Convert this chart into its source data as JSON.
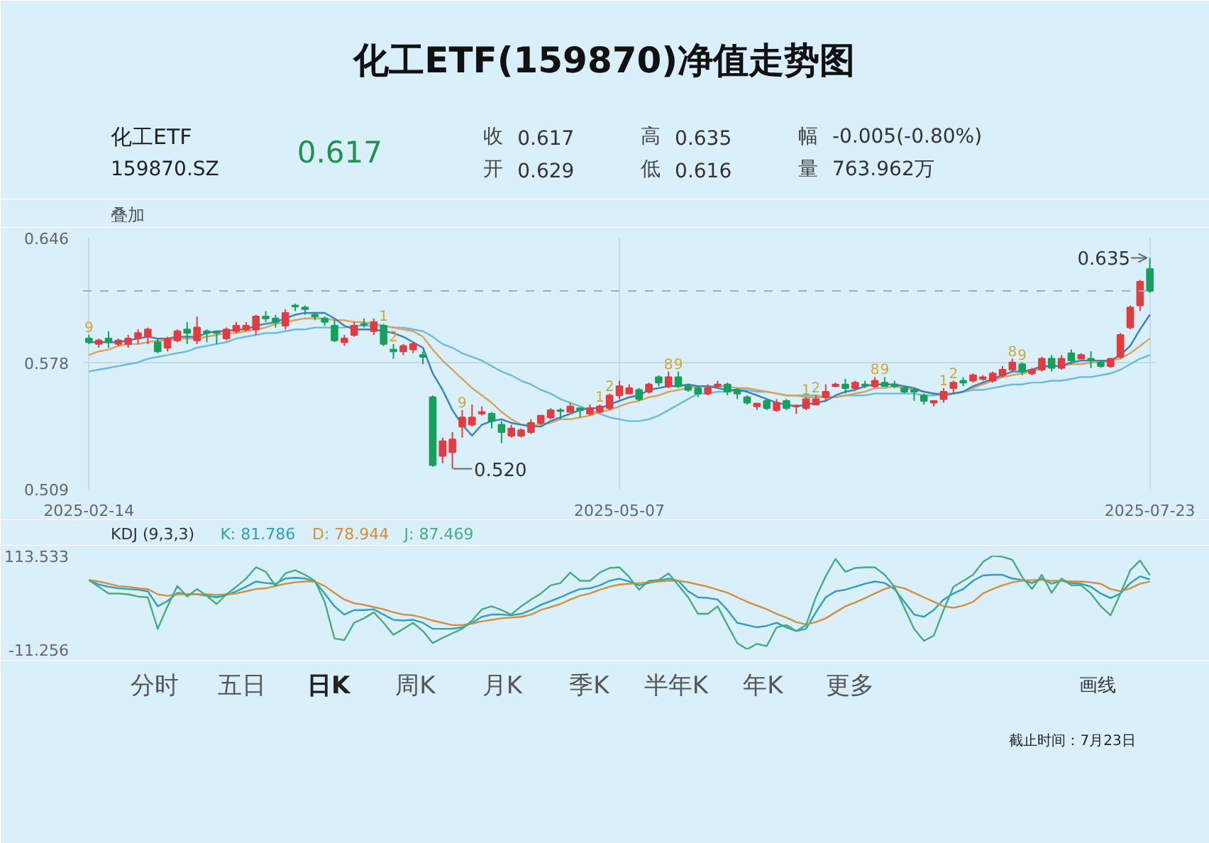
{
  "chart_data": [
    {
      "type": "other",
      "title": "化工ETF(159870)净值走势图",
      "annotations": [
        "化工ETF",
        "159870.SZ",
        "0.617",
        "收",
        "0.617",
        "开",
        "0.629",
        "高",
        "0.635",
        "低",
        "0.616",
        "幅",
        "-0.005(-0.80%)",
        "量",
        "763.962万"
      ]
    },
    {
      "type": "candlestick",
      "categories": [
        "2025-02-14",
        null,
        null,
        null,
        null,
        null,
        null,
        null,
        null,
        null,
        null,
        null,
        null,
        null,
        null,
        null,
        null,
        null,
        null,
        null,
        null,
        null,
        null,
        null,
        null,
        null,
        null,
        null,
        null,
        null,
        null,
        null,
        null,
        null,
        null,
        null,
        null,
        null,
        null,
        null,
        null,
        null,
        null,
        null,
        null,
        null,
        null,
        null,
        null,
        null,
        null,
        null,
        null,
        null,
        "2025-05-07",
        null,
        null,
        null,
        null,
        null,
        null,
        null,
        null,
        null,
        null,
        null,
        null,
        null,
        null,
        null,
        null,
        null,
        null,
        null,
        null,
        null,
        null,
        null,
        null,
        null,
        null,
        null,
        null,
        null,
        null,
        null,
        null,
        null,
        null,
        null,
        null,
        null,
        null,
        null,
        null,
        null,
        null,
        null,
        null,
        null,
        null,
        null,
        null,
        null,
        null,
        null,
        null,
        null,
        "2025-07-23"
      ],
      "ohlc": [
        [
          0.591,
          0.593,
          0.588,
          0.589
        ],
        [
          0.588,
          0.591,
          0.586,
          0.59
        ],
        [
          0.591,
          0.595,
          0.586,
          0.589
        ],
        [
          0.588,
          0.591,
          0.587,
          0.59
        ],
        [
          0.588,
          0.593,
          0.586,
          0.591
        ],
        [
          0.591,
          0.596,
          0.588,
          0.594
        ],
        [
          0.592,
          0.597,
          0.588,
          0.596
        ],
        [
          0.589,
          0.591,
          0.583,
          0.584
        ],
        [
          0.586,
          0.592,
          0.584,
          0.591
        ],
        [
          0.59,
          0.596,
          0.589,
          0.595
        ],
        [
          0.596,
          0.6,
          0.588,
          0.594
        ],
        [
          0.59,
          0.603,
          0.588,
          0.597
        ],
        [
          0.595,
          0.596,
          0.589,
          0.594
        ],
        [
          0.5945,
          0.595,
          0.588,
          0.594
        ],
        [
          0.591,
          0.597,
          0.59,
          0.596
        ],
        [
          0.595,
          0.6,
          0.594,
          0.598
        ],
        [
          0.596,
          0.6,
          0.595,
          0.598
        ],
        [
          0.596,
          0.604,
          0.593,
          0.603
        ],
        [
          0.603,
          0.606,
          0.6,
          0.602
        ],
        [
          0.602,
          0.604,
          0.597,
          0.6
        ],
        [
          0.598,
          0.607,
          0.596,
          0.605
        ],
        [
          0.609,
          0.61,
          0.606,
          0.6085
        ],
        [
          0.608,
          0.609,
          0.604,
          0.607
        ],
        [
          0.604,
          0.6055,
          0.601,
          0.603
        ],
        [
          0.602,
          0.603,
          0.598,
          0.6
        ],
        [
          0.598,
          0.601,
          0.589,
          0.59
        ],
        [
          0.589,
          0.593,
          0.587,
          0.591
        ],
        [
          0.593,
          0.6,
          0.592,
          0.598
        ],
        [
          0.599,
          0.602,
          0.597,
          0.5985
        ],
        [
          0.595,
          0.602,
          0.593,
          0.6
        ],
        [
          0.598,
          0.599,
          0.587,
          0.588
        ],
        [
          0.585,
          0.588,
          0.58,
          0.584
        ],
        [
          0.584,
          0.588,
          0.582,
          0.587
        ],
        [
          0.585,
          0.589,
          0.583,
          0.588
        ],
        [
          0.582,
          0.584,
          0.577,
          0.581
        ],
        [
          0.559,
          0.56,
          0.521,
          0.522
        ],
        [
          0.527,
          0.537,
          0.523,
          0.535
        ],
        [
          0.529,
          0.54,
          0.52,
          0.536
        ],
        [
          0.543,
          0.552,
          0.537,
          0.548
        ],
        [
          0.544,
          0.555,
          0.543,
          0.548
        ],
        [
          0.55,
          0.554,
          0.549,
          0.551
        ],
        [
          0.55,
          0.551,
          0.542,
          0.546
        ],
        [
          0.544,
          0.546,
          0.534,
          0.54
        ],
        [
          0.538,
          0.544,
          0.537,
          0.542
        ],
        [
          0.538,
          0.542,
          0.537,
          0.541
        ],
        [
          0.54,
          0.547,
          0.539,
          0.545
        ],
        [
          0.545,
          0.549,
          0.544,
          0.549
        ],
        [
          0.548,
          0.553,
          0.547,
          0.552
        ],
        [
          0.552,
          0.553,
          0.547,
          0.5515
        ],
        [
          0.551,
          0.556,
          0.551,
          0.554
        ],
        [
          0.553,
          0.553,
          0.548,
          0.552
        ],
        [
          0.55,
          0.555,
          0.549,
          0.553
        ],
        [
          0.551,
          0.555,
          0.55,
          0.554
        ],
        [
          0.553,
          0.561,
          0.552,
          0.56
        ],
        [
          0.56,
          0.568,
          0.558,
          0.565
        ],
        [
          0.561,
          0.566,
          0.561,
          0.564
        ],
        [
          0.563,
          0.564,
          0.557,
          0.558
        ],
        [
          0.562,
          0.567,
          0.561,
          0.566
        ],
        [
          0.57,
          0.571,
          0.565,
          0.567
        ],
        [
          0.565,
          0.573,
          0.564,
          0.57
        ],
        [
          0.57,
          0.573,
          0.564,
          0.565
        ],
        [
          0.565,
          0.566,
          0.562,
          0.563
        ],
        [
          0.564,
          0.565,
          0.559,
          0.561
        ],
        [
          0.561,
          0.566,
          0.56,
          0.564
        ],
        [
          0.565,
          0.568,
          0.564,
          0.566
        ],
        [
          0.566,
          0.567,
          0.56,
          0.562
        ],
        [
          0.563,
          0.564,
          0.558,
          0.561
        ],
        [
          0.559,
          0.56,
          0.555,
          0.556
        ],
        [
          0.554,
          0.556,
          0.552,
          0.5555
        ],
        [
          0.557,
          0.558,
          0.552,
          0.553
        ],
        [
          0.552,
          0.558,
          0.551,
          0.556
        ],
        [
          0.557,
          0.558,
          0.552,
          0.553
        ],
        [
          0.554,
          0.555,
          0.55,
          0.5545
        ],
        [
          0.553,
          0.559,
          0.552,
          0.558
        ],
        [
          0.555,
          0.56,
          0.555,
          0.558
        ],
        [
          0.559,
          0.566,
          0.557,
          0.562
        ],
        [
          0.565,
          0.567,
          0.565,
          0.566
        ],
        [
          0.566,
          0.569,
          0.561,
          0.564
        ],
        [
          0.564,
          0.568,
          0.563,
          0.567
        ],
        [
          0.566,
          0.568,
          0.564,
          0.5655
        ],
        [
          0.565,
          0.57,
          0.564,
          0.568
        ],
        [
          0.567,
          0.57,
          0.565,
          0.565
        ],
        [
          0.566,
          0.568,
          0.564,
          0.565
        ],
        [
          0.564,
          0.565,
          0.561,
          0.562
        ],
        [
          0.563,
          0.564,
          0.557,
          0.562
        ],
        [
          0.56,
          0.561,
          0.555,
          0.557
        ],
        [
          0.556,
          0.557,
          0.554,
          0.557
        ],
        [
          0.558,
          0.564,
          0.556,
          0.562
        ],
        [
          0.564,
          0.568,
          0.561,
          0.567
        ],
        [
          0.568,
          0.57,
          0.565,
          0.567
        ],
        [
          0.568,
          0.572,
          0.567,
          0.571
        ],
        [
          0.569,
          0.571,
          0.568,
          0.57
        ],
        [
          0.568,
          0.573,
          0.567,
          0.572
        ],
        [
          0.571,
          0.576,
          0.57,
          0.574
        ],
        [
          0.574,
          0.58,
          0.573,
          0.578
        ],
        [
          0.577,
          0.578,
          0.571,
          0.573
        ],
        [
          0.572,
          0.575,
          0.571,
          0.574
        ],
        [
          0.574,
          0.581,
          0.573,
          0.58
        ],
        [
          0.58,
          0.582,
          0.573,
          0.575
        ],
        [
          0.575,
          0.582,
          0.574,
          0.58
        ],
        [
          0.583,
          0.585,
          0.577,
          0.579
        ],
        [
          0.58,
          0.583,
          0.58,
          0.582
        ],
        [
          0.58,
          0.584,
          0.575,
          0.579
        ],
        [
          0.578,
          0.579,
          0.575,
          0.576
        ],
        [
          0.576,
          0.58,
          0.575,
          0.58
        ],
        [
          0.581,
          0.594,
          0.58,
          0.593
        ],
        [
          0.597,
          0.609,
          0.596,
          0.608
        ],
        [
          0.609,
          0.623,
          0.606,
          0.622
        ],
        [
          0.629,
          0.635,
          0.616,
          0.617
        ]
      ],
      "value_labels": [
        "9",
        null,
        null,
        null,
        null,
        null,
        null,
        null,
        null,
        null,
        null,
        null,
        null,
        null,
        null,
        null,
        null,
        null,
        null,
        null,
        null,
        null,
        null,
        null,
        null,
        null,
        null,
        null,
        null,
        null,
        "1",
        "2",
        null,
        null,
        null,
        null,
        null,
        null,
        "9",
        null,
        null,
        null,
        null,
        null,
        null,
        null,
        null,
        null,
        null,
        null,
        null,
        null,
        "1",
        "2",
        null,
        null,
        null,
        null,
        null,
        "8",
        "9",
        null,
        null,
        null,
        null,
        null,
        null,
        null,
        null,
        null,
        null,
        null,
        null,
        "1",
        "2",
        null,
        null,
        null,
        null,
        null,
        "8",
        "9",
        null,
        null,
        null,
        null,
        null,
        "1",
        "2",
        null,
        null,
        null,
        null,
        null,
        "8",
        "9",
        null,
        null,
        null,
        null,
        null,
        null,
        null,
        null,
        null,
        null,
        null,
        null,
        null
      ],
      "series": [
        {
          "type": "line",
          "color": "#6bbbd9",
          "values": [
            0.573,
            0.574,
            0.575,
            0.576,
            0.577,
            0.578,
            0.58,
            0.581,
            0.582,
            0.583,
            0.584,
            0.586,
            0.587,
            0.588,
            0.589,
            0.591,
            0.592,
            0.593,
            0.594,
            0.594,
            0.595,
            0.596,
            0.596,
            0.597,
            0.597,
            0.597,
            0.597,
            0.598,
            0.598,
            0.598,
            0.598,
            0.597,
            0.597,
            0.596,
            0.595,
            0.592,
            0.588,
            0.586,
            0.583,
            0.581,
            0.579,
            0.576,
            0.573,
            0.571,
            0.568,
            0.566,
            0.563,
            0.561,
            0.558,
            0.556,
            0.554,
            0.552,
            0.55,
            0.548,
            0.547,
            0.546,
            0.546,
            0.547,
            0.549,
            0.552,
            0.555,
            0.558,
            0.561,
            0.561,
            0.562,
            0.562,
            0.563,
            0.563,
            0.562,
            0.562,
            0.561,
            0.56,
            0.56,
            0.56,
            0.56,
            0.559,
            0.559,
            0.56,
            0.56,
            0.56,
            0.561,
            0.561,
            0.561,
            0.561,
            0.561,
            0.56,
            0.56,
            0.561,
            0.561,
            0.562,
            0.563,
            0.563,
            0.564,
            0.565,
            0.566,
            0.566,
            0.567,
            0.567,
            0.568,
            0.568,
            0.569,
            0.57,
            0.57,
            0.571,
            0.572,
            0.574,
            0.577,
            0.58,
            0.582
          ]
        },
        {
          "type": "line",
          "color": "#dba25a",
          "values": [
            0.582,
            0.584,
            0.585,
            0.587,
            0.588,
            0.588,
            0.589,
            0.59,
            0.59,
            0.591,
            0.591,
            0.591,
            0.592,
            0.593,
            0.594,
            0.594,
            0.595,
            0.596,
            0.597,
            0.599,
            0.6,
            0.601,
            0.602,
            0.602,
            0.602,
            0.601,
            0.601,
            0.6,
            0.6,
            0.599,
            0.598,
            0.597,
            0.596,
            0.595,
            0.592,
            0.585,
            0.579,
            0.574,
            0.569,
            0.564,
            0.56,
            0.556,
            0.551,
            0.547,
            0.544,
            0.544,
            0.544,
            0.545,
            0.547,
            0.547,
            0.548,
            0.549,
            0.551,
            0.552,
            0.554,
            0.556,
            0.557,
            0.559,
            0.56,
            0.562,
            0.563,
            0.564,
            0.565,
            0.565,
            0.565,
            0.565,
            0.564,
            0.564,
            0.563,
            0.562,
            0.561,
            0.56,
            0.56,
            0.559,
            0.559,
            0.559,
            0.559,
            0.56,
            0.561,
            0.562,
            0.564,
            0.564,
            0.565,
            0.564,
            0.563,
            0.562,
            0.561,
            0.561,
            0.561,
            0.562,
            0.564,
            0.566,
            0.568,
            0.57,
            0.571,
            0.572,
            0.573,
            0.575,
            0.576,
            0.576,
            0.577,
            0.577,
            0.578,
            0.578,
            0.579,
            0.58,
            0.583,
            0.587,
            0.591
          ]
        },
        {
          "type": "line",
          "color": "#3a7fc0",
          "values": [
            0.589,
            0.589,
            0.589,
            0.589,
            0.59,
            0.591,
            0.592,
            0.591,
            0.591,
            0.592,
            0.592,
            0.592,
            0.594,
            0.595,
            0.595,
            0.596,
            0.596,
            0.598,
            0.599,
            0.6,
            0.602,
            0.604,
            0.605,
            0.605,
            0.605,
            0.602,
            0.598,
            0.596,
            0.596,
            0.596,
            0.595,
            0.594,
            0.592,
            0.589,
            0.586,
            0.572,
            0.563,
            0.552,
            0.544,
            0.538,
            0.544,
            0.546,
            0.547,
            0.545,
            0.544,
            0.543,
            0.543,
            0.546,
            0.548,
            0.55,
            0.552,
            0.553,
            0.553,
            0.555,
            0.557,
            0.559,
            0.56,
            0.563,
            0.564,
            0.565,
            0.565,
            0.566,
            0.565,
            0.565,
            0.564,
            0.563,
            0.563,
            0.562,
            0.56,
            0.558,
            0.556,
            0.555,
            0.554,
            0.555,
            0.556,
            0.557,
            0.56,
            0.562,
            0.563,
            0.565,
            0.566,
            0.566,
            0.566,
            0.565,
            0.564,
            0.562,
            0.561,
            0.56,
            0.561,
            0.562,
            0.565,
            0.567,
            0.569,
            0.571,
            0.573,
            0.573,
            0.574,
            0.576,
            0.576,
            0.576,
            0.578,
            0.579,
            0.579,
            0.579,
            0.579,
            0.582,
            0.587,
            0.596,
            0.604
          ]
        }
      ],
      "ylim": [
        0.509,
        0.646
      ],
      "yticks": [
        0.646,
        0.578,
        0.509
      ],
      "grid": true,
      "ref_lines": [
        {
          "axis": "y",
          "value": 0.617,
          "line_style": "dashed"
        }
      ],
      "annotations": [
        "叠加",
        {
          "text": "0.635",
          "x": "2025-07-23",
          "y": 0.635
        },
        "0.520"
      ]
    },
    {
      "type": "line",
      "title": "KDJ (9,3,3)",
      "categories": [
        "2025-02-14",
        null,
        null,
        null,
        null,
        null,
        null,
        null,
        null,
        null,
        null,
        null,
        null,
        null,
        null,
        null,
        null,
        null,
        null,
        null,
        null,
        null,
        null,
        null,
        null,
        null,
        null,
        null,
        null,
        null,
        null,
        null,
        null,
        null,
        null,
        null,
        null,
        null,
        null,
        null,
        null,
        null,
        null,
        null,
        null,
        null,
        null,
        null,
        null,
        null,
        null,
        null,
        null,
        null,
        "2025-05-07",
        null,
        null,
        null,
        null,
        null,
        null,
        null,
        null,
        null,
        null,
        null,
        null,
        null,
        null,
        null,
        null,
        null,
        null,
        null,
        null,
        null,
        null,
        null,
        null,
        null,
        null,
        null,
        null,
        null,
        null,
        null,
        null,
        null,
        null,
        null,
        null,
        null,
        null,
        null,
        null,
        null,
        null,
        null,
        null,
        null,
        null,
        null,
        null,
        null,
        null,
        null,
        null,
        null,
        "2025-07-23"
      ],
      "series": [
        {
          "name": "K: 81.786",
          "color": "#2b9fc4",
          "values": [
            81,
            75,
            72,
            70,
            69,
            68,
            66,
            46,
            53,
            64,
            62,
            62,
            60,
            58,
            61,
            66,
            72,
            79,
            77,
            76,
            83,
            84,
            83,
            79,
            63,
            46,
            35,
            41,
            41,
            42,
            35,
            28,
            27,
            28,
            24,
            16,
            16,
            16,
            18,
            24,
            32,
            35,
            35,
            34,
            36,
            41,
            48,
            53,
            58,
            64,
            69,
            70,
            74,
            80,
            83,
            79,
            74,
            77,
            80,
            83,
            80,
            66,
            58,
            57,
            55,
            41,
            24,
            21,
            18,
            20,
            24,
            18,
            13,
            16,
            38,
            58,
            66,
            68,
            72,
            76,
            79,
            77,
            69,
            52,
            35,
            32,
            41,
            55,
            63,
            69,
            80,
            87,
            88,
            88,
            83,
            81,
            77,
            83,
            76,
            80,
            77,
            76,
            72,
            63,
            57,
            63,
            77,
            86,
            81.786
          ]
        },
        {
          "name": "D: 78.944",
          "color": "#d38f3a",
          "values": [
            81,
            79,
            76,
            73,
            72,
            70,
            69,
            62,
            60,
            62,
            62,
            62,
            62,
            61,
            62,
            63,
            66,
            69,
            70,
            73,
            76,
            78,
            79,
            79,
            73,
            64,
            55,
            50,
            48,
            45,
            42,
            38,
            35,
            34,
            31,
            27,
            24,
            21,
            21,
            23,
            26,
            28,
            30,
            31,
            32,
            35,
            41,
            45,
            49,
            55,
            60,
            63,
            68,
            72,
            75,
            76,
            77,
            78,
            79,
            80,
            80,
            78,
            75,
            72,
            68,
            64,
            58,
            52,
            47,
            42,
            36,
            31,
            25,
            22,
            25,
            30,
            38,
            46,
            51,
            57,
            63,
            69,
            73,
            70,
            64,
            58,
            52,
            46,
            44,
            47,
            52,
            63,
            69,
            74,
            78,
            80,
            81,
            81,
            80,
            80,
            79,
            79,
            78,
            76,
            69,
            66,
            70,
            76,
            78.944
          ]
        },
        {
          "name": "J: 87.469",
          "color": "#45ad7e",
          "values": [
            81,
            72,
            63,
            63,
            62,
            59,
            58,
            16,
            46,
            73,
            59,
            69,
            60,
            49,
            62,
            72,
            83,
            98,
            92,
            73,
            90,
            94,
            88,
            80,
            52,
            3,
            1,
            24,
            30,
            38,
            24,
            8,
            16,
            24,
            13,
            -3,
            4,
            10,
            16,
            27,
            42,
            46,
            41,
            35,
            46,
            55,
            63,
            74,
            77,
            91,
            80,
            80,
            91,
            97,
            98,
            85,
            68,
            80,
            81,
            90,
            74,
            58,
            36,
            36,
            46,
            21,
            -3,
            -11.256,
            -4,
            -7,
            18,
            21,
            13,
            21,
            58,
            86,
            109,
            92,
            97,
            98,
            98,
            88,
            72,
            44,
            16,
            0,
            7,
            41,
            72,
            80,
            88,
            105,
            113.533,
            112,
            108,
            85,
            69,
            88,
            64,
            83,
            74,
            74,
            63,
            46,
            34,
            63,
            94,
            107,
            87.469
          ]
        }
      ],
      "ylim": [
        -11.256,
        113.533
      ],
      "yticks": [
        113.533,
        -11.256
      ],
      "tick_labels": "y"
    },
    {
      "type": "other",
      "annotations": [
        "分时",
        "五日",
        "日K",
        "周K",
        "月K",
        "季K",
        "半年K",
        "年K",
        "更多",
        "画线",
        "截止时间：7月23日"
      ]
    }
  ]
}
